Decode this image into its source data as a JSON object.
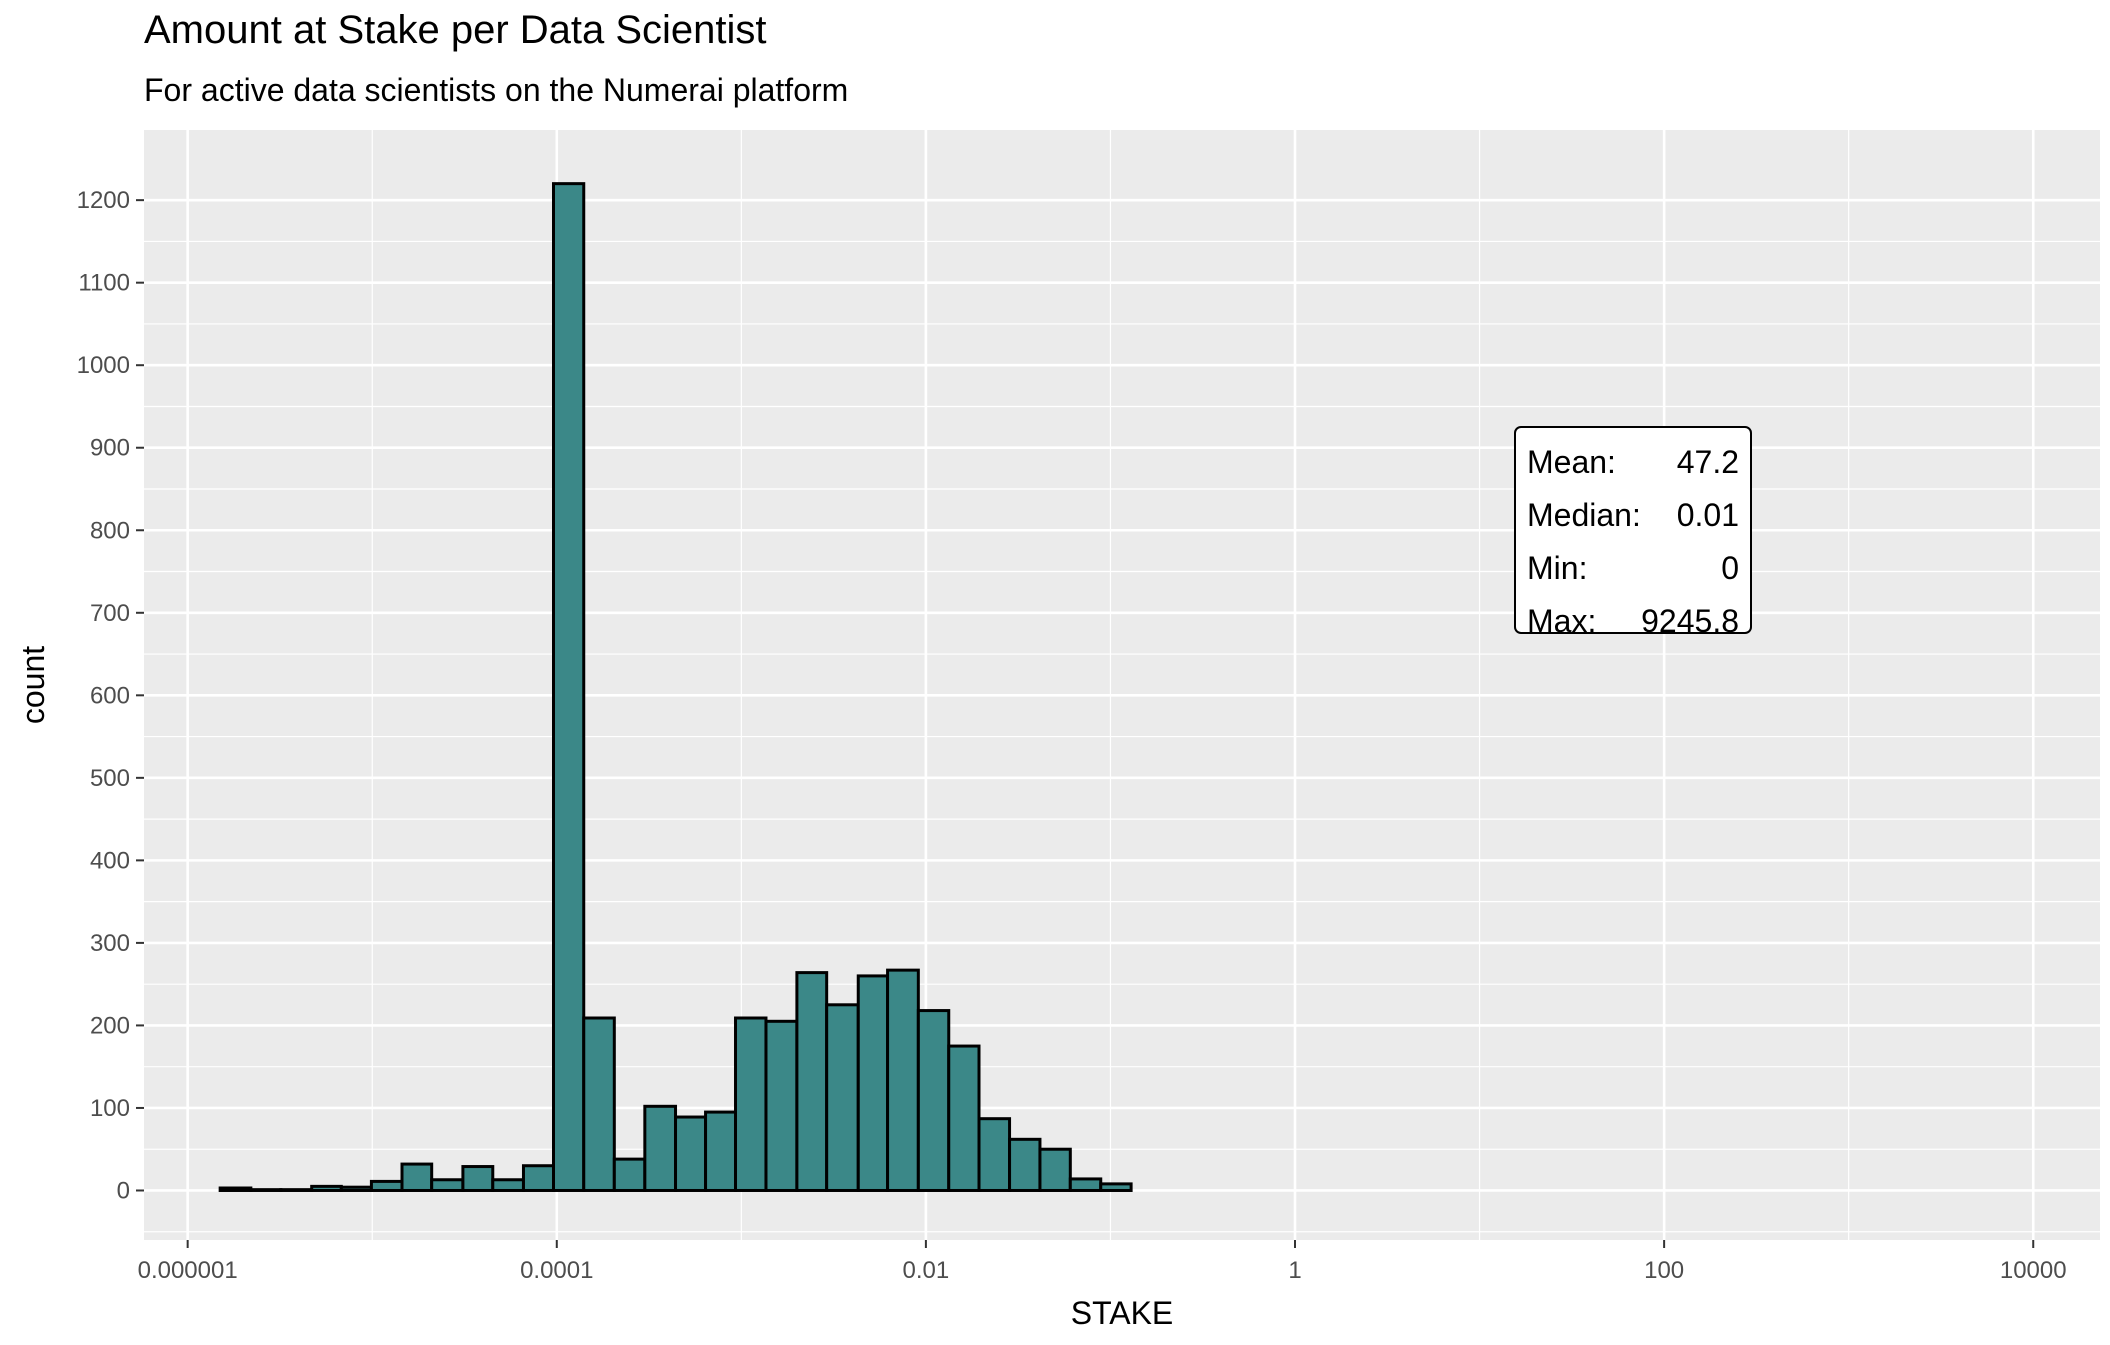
{
  "chart_data": {
    "type": "bar",
    "title": "Amount at Stake per Data Scientist",
    "subtitle": "For active data scientists on the Numerai platform",
    "xlabel": "STAKE",
    "ylabel": "count",
    "x_scale": "log10",
    "x_ticks": [
      {
        "value": 1e-06,
        "label": "0.000001"
      },
      {
        "value": 0.0001,
        "label": "0.0001"
      },
      {
        "value": 0.01,
        "label": "0.01"
      },
      {
        "value": 1,
        "label": "1"
      },
      {
        "value": 100,
        "label": "100"
      },
      {
        "value": 10000,
        "label": "10000"
      }
    ],
    "y_ticks": [
      0,
      100,
      200,
      300,
      400,
      500,
      600,
      700,
      800,
      900,
      1000,
      1100,
      1200
    ],
    "ylim": [
      -60,
      1285
    ],
    "xlim": [
      5.8e-07,
      23000
    ],
    "grid": true,
    "fill_color": "#3b8888",
    "edge_color": "#000000",
    "bins": [
      {
        "x0": 1.5e-06,
        "x1": 2.2e-06,
        "count": 3
      },
      {
        "x0": 2.2e-06,
        "x1": 3.2e-06,
        "count": 1
      },
      {
        "x0": 3.2e-06,
        "x1": 4.7e-06,
        "count": 1
      },
      {
        "x0": 4.7e-06,
        "x1": 6.8e-06,
        "count": 5
      },
      {
        "x0": 6.8e-06,
        "x1": 9.9e-06,
        "count": 4
      },
      {
        "x0": 9.9e-06,
        "x1": 1.45e-05,
        "count": 11
      },
      {
        "x0": 1.45e-05,
        "x1": 2.1e-05,
        "count": 32
      },
      {
        "x0": 2.1e-05,
        "x1": 3.1e-05,
        "count": 13
      },
      {
        "x0": 3.1e-05,
        "x1": 4.5e-05,
        "count": 29
      },
      {
        "x0": 4.5e-05,
        "x1": 6.6e-05,
        "count": 13
      },
      {
        "x0": 6.6e-05,
        "x1": 9.6e-05,
        "count": 30
      },
      {
        "x0": 9.6e-05,
        "x1": 0.00014,
        "count": 1220
      },
      {
        "x0": 0.00014,
        "x1": 0.000205,
        "count": 209
      },
      {
        "x0": 0.000205,
        "x1": 0.0003,
        "count": 38
      },
      {
        "x0": 0.0003,
        "x1": 0.00044,
        "count": 102
      },
      {
        "x0": 0.00044,
        "x1": 0.00064,
        "count": 89
      },
      {
        "x0": 0.00064,
        "x1": 0.00093,
        "count": 95
      },
      {
        "x0": 0.00093,
        "x1": 0.00136,
        "count": 209
      },
      {
        "x0": 0.00136,
        "x1": 0.002,
        "count": 205
      },
      {
        "x0": 0.002,
        "x1": 0.0029,
        "count": 264
      },
      {
        "x0": 0.0029,
        "x1": 0.0043,
        "count": 225
      },
      {
        "x0": 0.0043,
        "x1": 0.0062,
        "count": 260
      },
      {
        "x0": 0.0062,
        "x1": 0.0091,
        "count": 267
      },
      {
        "x0": 0.0091,
        "x1": 0.0133,
        "count": 218
      },
      {
        "x0": 0.0133,
        "x1": 0.0194,
        "count": 175
      },
      {
        "x0": 0.0194,
        "x1": 0.0284,
        "count": 87
      },
      {
        "x0": 0.0284,
        "x1": 0.0415,
        "count": 62
      },
      {
        "x0": 0.0415,
        "x1": 0.0606,
        "count": 50
      },
      {
        "x0": 0.0606,
        "x1": 0.0886,
        "count": 14
      },
      {
        "x0": 0.0886,
        "x1": 0.1294,
        "count": 8
      }
    ],
    "stats_box": {
      "rows": [
        {
          "label": "Mean:",
          "value": "47.2"
        },
        {
          "label": "Median:",
          "value": "0.01"
        },
        {
          "label": "Min:",
          "value": "0"
        },
        {
          "label": "Max:",
          "value": "9245.8"
        }
      ]
    }
  }
}
